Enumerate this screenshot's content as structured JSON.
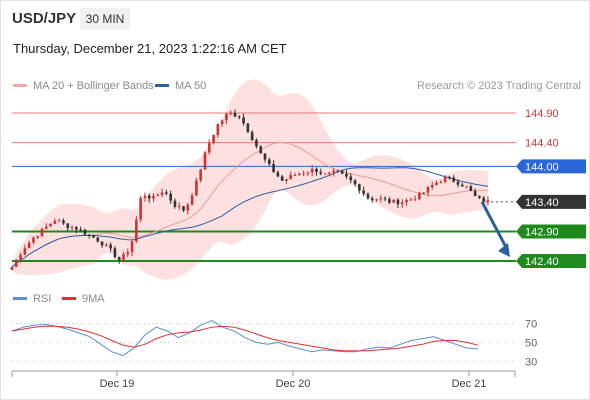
{
  "header": {
    "symbol": "USD/JPY",
    "timeframe": "30 MIN",
    "timestamp": "Thursday, December 21, 2023 1:22:16 AM CET",
    "credit": "Research © 2023 Trading Central"
  },
  "legend": [
    {
      "label": "MA 20 + Bollinger Bands",
      "color": "#f4a6a6"
    },
    {
      "label": "MA 50",
      "color": "#2f5f9e"
    }
  ],
  "rsi_legend": [
    {
      "label": "RSI",
      "color": "#5a8fd6"
    },
    {
      "label": "9MA",
      "color": "#e03030"
    }
  ],
  "colors": {
    "up": "#cc3333",
    "down": "#333333",
    "resistance": "#e27a7a",
    "pivot": "#2b66d9",
    "support": "#1e8a1e",
    "arrow": "#2b5f9e",
    "band_fill": "#fde0e0"
  },
  "chart_data": {
    "type": "candlestick",
    "price_ylim": [
      142.08,
      145.12
    ],
    "x_ticks": [
      "Dec 19",
      "Dec 20",
      "Dec 21"
    ],
    "levels": [
      {
        "value": 144.9,
        "label": "144.90",
        "kind": "resistance"
      },
      {
        "value": 144.4,
        "label": "144.40",
        "kind": "resistance"
      },
      {
        "value": 144.0,
        "label": "144.00",
        "kind": "pivot"
      },
      {
        "value": 143.4,
        "label": "143.40",
        "kind": "last"
      },
      {
        "value": 142.9,
        "label": "142.90",
        "kind": "support"
      },
      {
        "value": 142.4,
        "label": "142.40",
        "kind": "support"
      }
    ],
    "forecast": {
      "from": 143.4,
      "to": 142.4
    },
    "price_path": [
      142.3,
      142.6,
      142.8,
      142.95,
      143.1,
      143.0,
      142.95,
      142.85,
      142.75,
      142.6,
      142.4,
      142.65,
      143.55,
      143.45,
      143.6,
      143.35,
      143.25,
      143.7,
      144.3,
      144.7,
      144.9,
      144.85,
      144.55,
      144.2,
      143.95,
      143.75,
      143.85,
      143.9,
      143.95,
      143.85,
      143.9,
      143.8,
      143.65,
      143.45,
      143.45,
      143.4,
      143.4,
      143.45,
      143.55,
      143.7,
      143.8,
      143.75,
      143.65,
      143.45,
      143.4
    ],
    "rsi_ylim": [
      25,
      80
    ],
    "rsi_levels": [
      70,
      50,
      30
    ],
    "rsi": [
      62,
      66,
      68,
      69,
      67,
      64,
      60,
      56,
      48,
      40,
      36,
      44,
      58,
      66,
      62,
      55,
      60,
      68,
      73,
      66,
      62,
      55,
      50,
      48,
      50,
      46,
      43,
      40,
      42,
      41,
      40,
      40,
      43,
      45,
      44,
      48,
      52,
      54,
      56,
      52,
      48,
      44,
      43
    ],
    "rsi_ma": [
      62,
      64,
      66,
      67,
      67,
      66,
      64,
      61,
      57,
      52,
      47,
      45,
      48,
      54,
      58,
      60,
      61,
      63,
      66,
      67,
      66,
      63,
      59,
      55,
      52,
      50,
      48,
      46,
      44,
      42,
      41,
      41,
      41,
      42,
      43,
      44,
      46,
      48,
      51,
      52,
      52,
      50,
      47
    ]
  }
}
